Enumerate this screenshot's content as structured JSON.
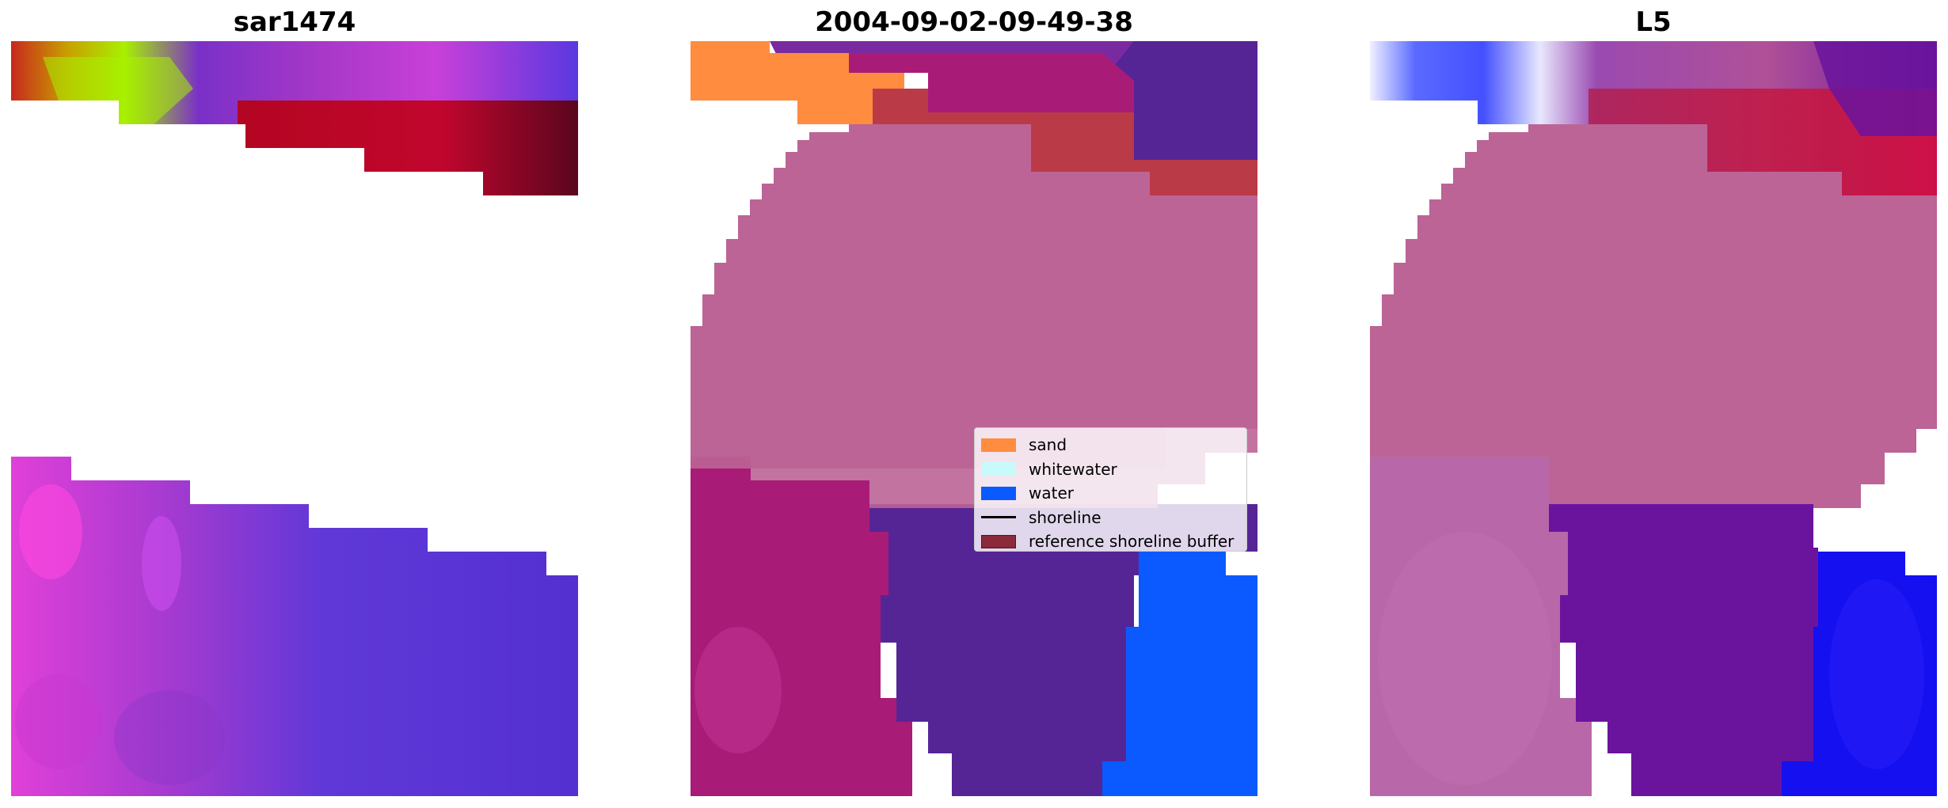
{
  "panels": [
    {
      "title": "sar1474",
      "name": "sar1474-image-panel"
    },
    {
      "title": "2004-09-02-09-49-38",
      "name": "classified-image-panel"
    },
    {
      "title": "L5",
      "name": "l5-image-panel"
    }
  ],
  "legend": {
    "items": [
      {
        "label": "sand",
        "color": "#ff8c3f",
        "kind": "patch"
      },
      {
        "label": "whitewater",
        "color": "#c8fafa",
        "kind": "patch"
      },
      {
        "label": "water",
        "color": "#0a5aff",
        "kind": "patch"
      },
      {
        "label": "shoreline",
        "color": "#000000",
        "kind": "line"
      },
      {
        "label": "reference shoreline buffer",
        "color": "#8b2a3a",
        "kind": "patch"
      }
    ]
  },
  "colors": {
    "purple_blue": "#5a35d6",
    "magenta": "#c43bd6",
    "dark_red": "#9a0010",
    "yellow_green": "#a8f000",
    "buffer_pink": "#bc6496",
    "dark_purple": "#552596",
    "deep_magenta": "#a81c78",
    "brick_red": "#bb3a48",
    "sand_orange": "#ff8c3f",
    "water_blue": "#0a5aff",
    "l5_purple": "#6a149e",
    "l5_blue": "#1410f0",
    "l5_red": "#c8143c"
  }
}
